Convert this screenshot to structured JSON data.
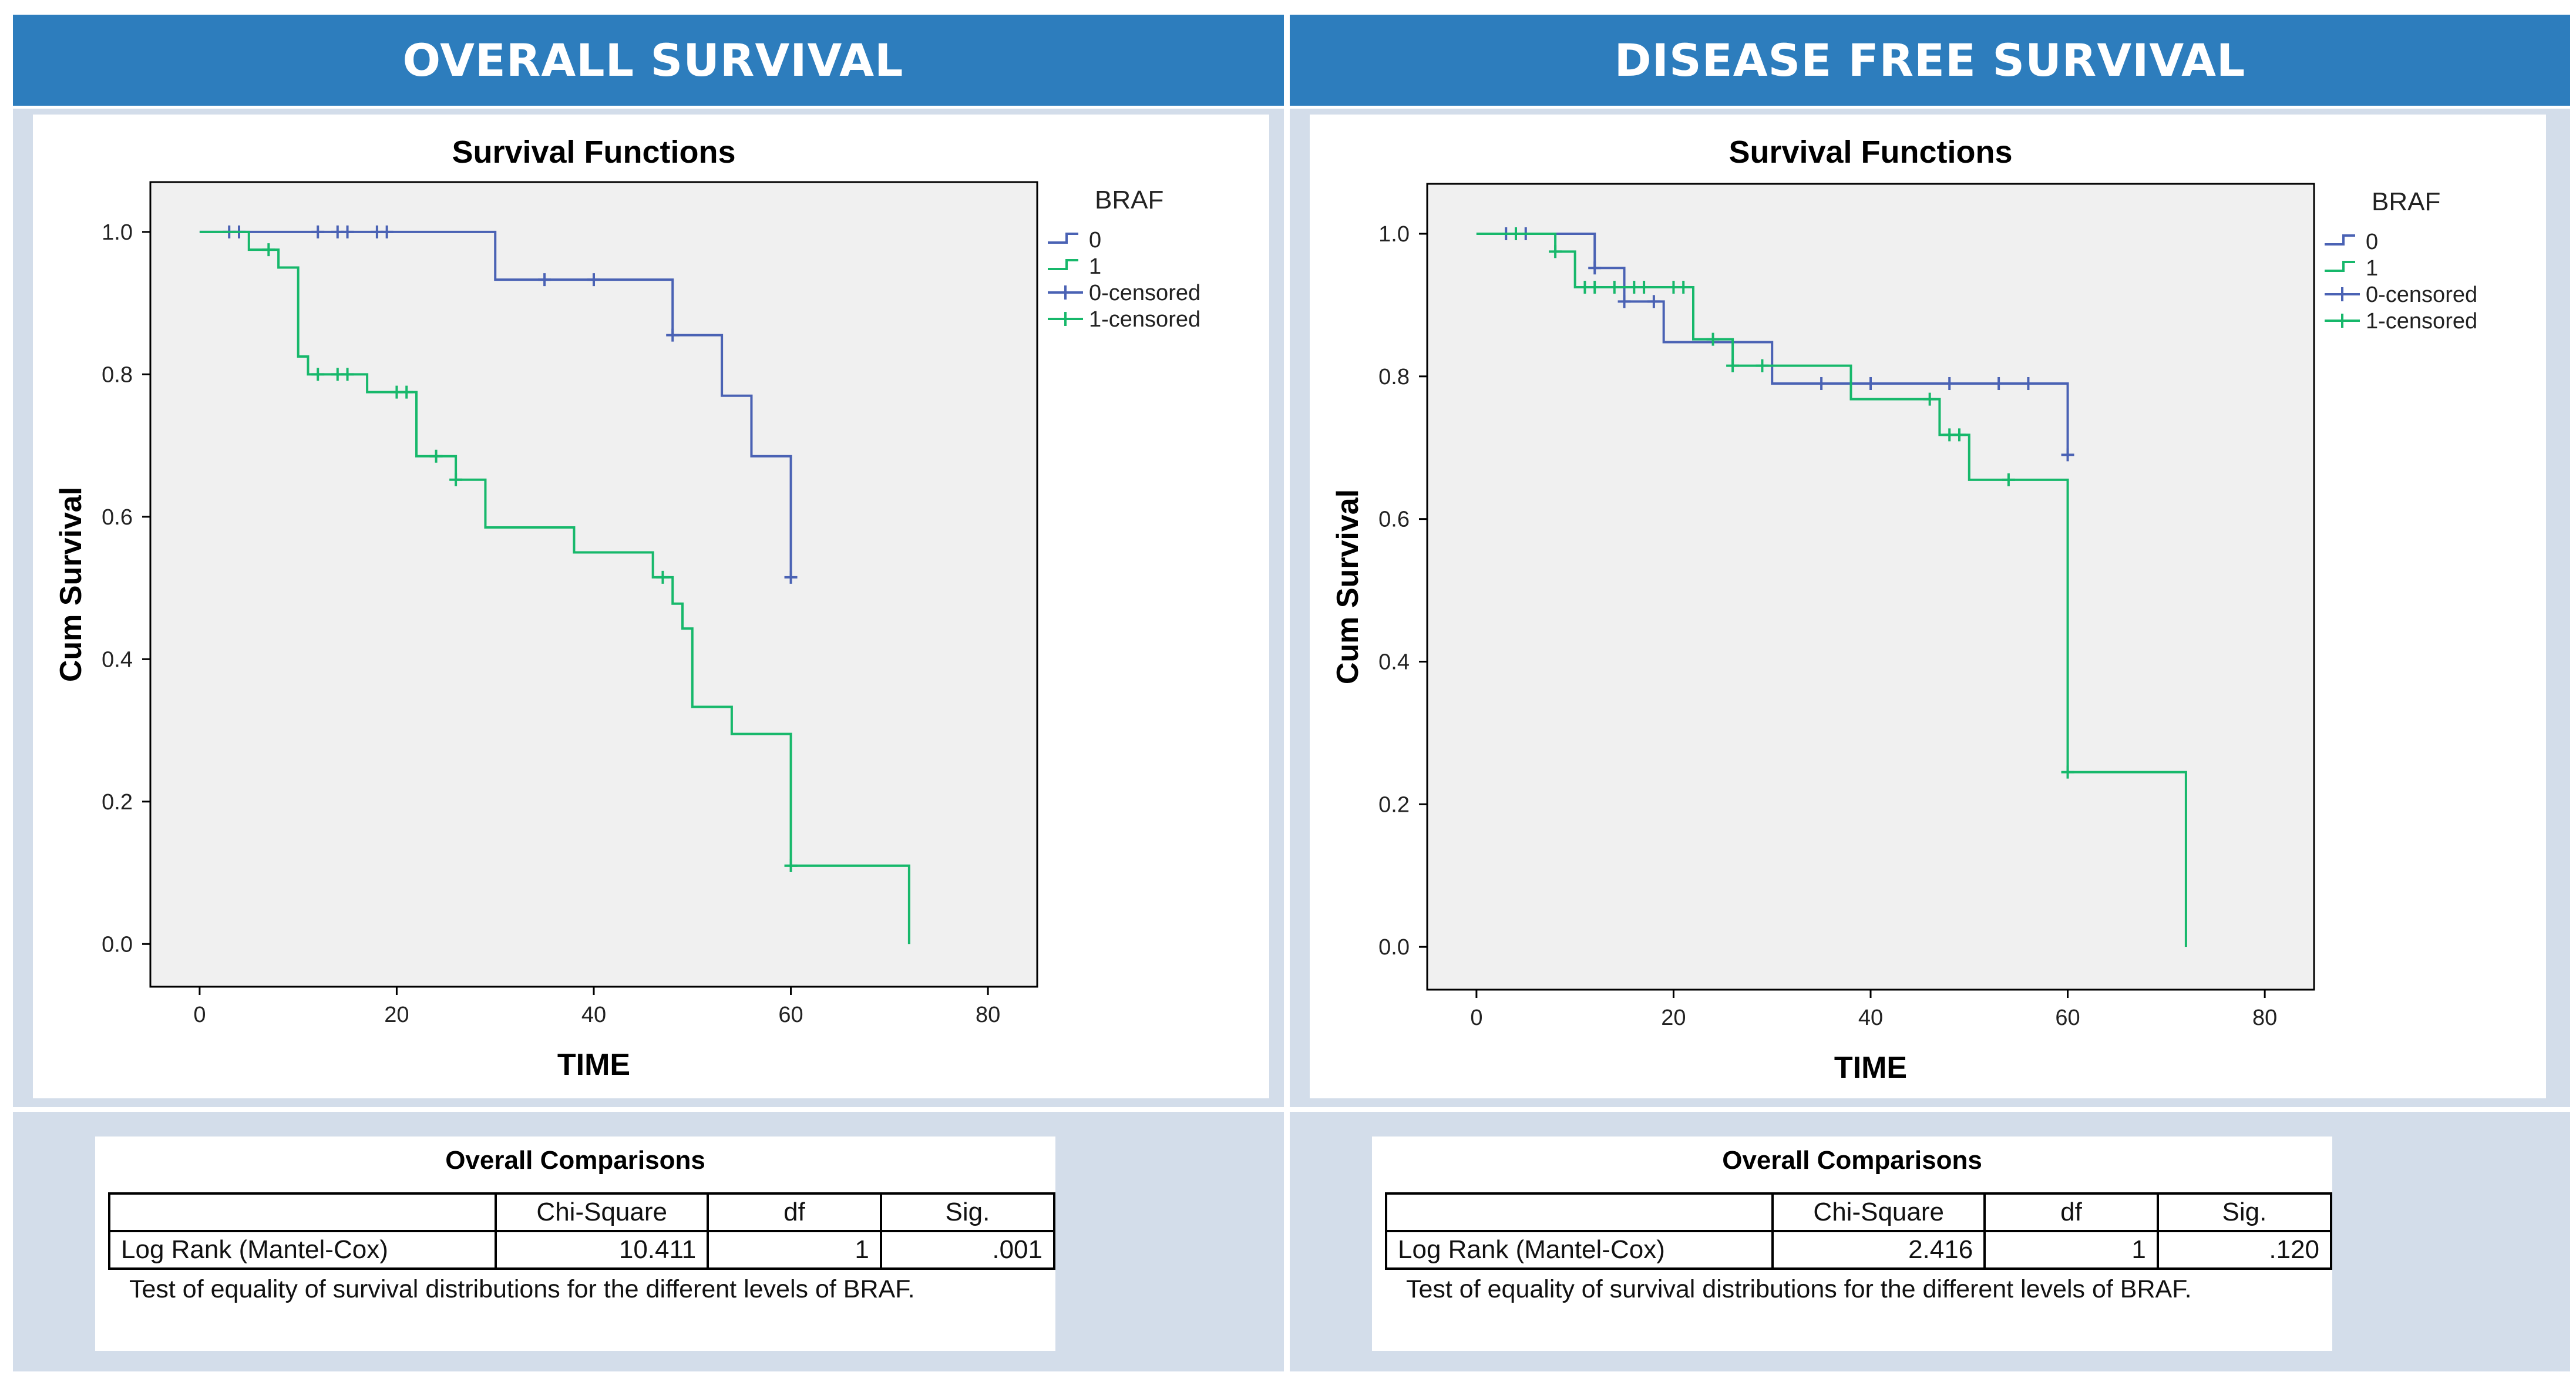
{
  "panels": [
    {
      "id": "overall",
      "header": "OVERALL SURVIVAL",
      "table_title": "Overall Comparisons",
      "table_columns": [
        "",
        "Chi-Square",
        "df",
        "Sig."
      ],
      "table_row": {
        "label": "Log Rank (Mantel-Cox)",
        "chi": "10.411",
        "df": "1",
        "sig": ".001"
      },
      "footnote": "Test of equality of survival distributions for the different levels of BRAF."
    },
    {
      "id": "dfs",
      "header": "DISEASE FREE SURVIVAL",
      "table_title": "Overall Comparisons",
      "table_columns": [
        "",
        "Chi-Square",
        "df",
        "Sig."
      ],
      "table_row": {
        "label": "Log Rank (Mantel-Cox)",
        "chi": "2.416",
        "df": "1",
        "sig": ".120"
      },
      "footnote": "Test of equality of survival distributions for the different levels of BRAF."
    }
  ],
  "colors": {
    "header": "#2d7dbd",
    "panel_bg": "#d3ddea",
    "plot_bg": "#f0f0f0",
    "series0": "#4a62b4",
    "series1": "#17b86b"
  },
  "chart_data": [
    {
      "type": "line",
      "subtype": "kaplan-meier step",
      "title": "Survival Functions",
      "xlabel": "TIME",
      "ylabel": "Cum Survival",
      "xlim": [
        -5,
        85
      ],
      "ylim": [
        -0.06,
        1.07
      ],
      "xticks": [
        0,
        20,
        40,
        60,
        80
      ],
      "yticks": [
        0.0,
        0.2,
        0.4,
        0.6,
        0.8,
        1.0
      ],
      "ytick_labels": [
        "0.0",
        "0.2",
        "0.4",
        "0.6",
        "0.8",
        "1.0"
      ],
      "legend": {
        "title": "BRAF",
        "entries": [
          "0",
          "1",
          "0-censored",
          "1-censored"
        ],
        "position": "right"
      },
      "series": [
        {
          "name": "0",
          "steps": [
            [
              0,
              1.0
            ],
            [
              30,
              0.933
            ],
            [
              48,
              0.855
            ],
            [
              53,
              0.77
            ],
            [
              56,
              0.685
            ],
            [
              60,
              0.515
            ]
          ],
          "end_x": 60,
          "censored": [
            [
              3,
              1.0
            ],
            [
              4,
              1.0
            ],
            [
              12,
              1.0
            ],
            [
              14,
              1.0
            ],
            [
              15,
              1.0
            ],
            [
              18,
              1.0
            ],
            [
              19,
              1.0
            ],
            [
              35,
              0.933
            ],
            [
              40,
              0.933
            ],
            [
              48,
              0.855
            ],
            [
              60,
              0.515
            ]
          ]
        },
        {
          "name": "1",
          "steps": [
            [
              0,
              1.0
            ],
            [
              5,
              0.975
            ],
            [
              8,
              0.95
            ],
            [
              10,
              0.825
            ],
            [
              11,
              0.8
            ],
            [
              17,
              0.775
            ],
            [
              22,
              0.685
            ],
            [
              26,
              0.652
            ],
            [
              29,
              0.585
            ],
            [
              38,
              0.55
            ],
            [
              46,
              0.515
            ],
            [
              48,
              0.478
            ],
            [
              49,
              0.443
            ],
            [
              50,
              0.333
            ],
            [
              54,
              0.295
            ],
            [
              60,
              0.11
            ],
            [
              72,
              0.0
            ]
          ],
          "end_x": 72,
          "censored": [
            [
              7,
              0.975
            ],
            [
              12,
              0.8
            ],
            [
              14,
              0.8
            ],
            [
              15,
              0.8
            ],
            [
              20,
              0.775
            ],
            [
              21,
              0.775
            ],
            [
              24,
              0.685
            ],
            [
              26,
              0.652
            ],
            [
              47,
              0.515
            ],
            [
              60,
              0.11
            ]
          ]
        }
      ]
    },
    {
      "type": "line",
      "subtype": "kaplan-meier step",
      "title": "Survival Functions",
      "xlabel": "TIME",
      "ylabel": "Cum Survival",
      "xlim": [
        -5,
        85
      ],
      "ylim": [
        -0.06,
        1.07
      ],
      "xticks": [
        0,
        20,
        40,
        60,
        80
      ],
      "yticks": [
        0.0,
        0.2,
        0.4,
        0.6,
        0.8,
        1.0
      ],
      "ytick_labels": [
        "0.0",
        "0.2",
        "0.4",
        "0.6",
        "0.8",
        "1.0"
      ],
      "legend": {
        "title": "BRAF",
        "entries": [
          "0",
          "1",
          "0-censored",
          "1-censored"
        ],
        "position": "right"
      },
      "series": [
        {
          "name": "0",
          "steps": [
            [
              0,
              1.0
            ],
            [
              12,
              0.952
            ],
            [
              15,
              0.905
            ],
            [
              19,
              0.848
            ],
            [
              30,
              0.79
            ],
            [
              60,
              0.69
            ]
          ],
          "end_x": 60,
          "censored": [
            [
              3,
              1.0
            ],
            [
              5,
              1.0
            ],
            [
              12,
              0.952
            ],
            [
              15,
              0.905
            ],
            [
              18,
              0.905
            ],
            [
              35,
              0.79
            ],
            [
              40,
              0.79
            ],
            [
              48,
              0.79
            ],
            [
              53,
              0.79
            ],
            [
              56,
              0.79
            ],
            [
              60,
              0.69
            ]
          ]
        },
        {
          "name": "1",
          "steps": [
            [
              0,
              1.0
            ],
            [
              8,
              0.975
            ],
            [
              10,
              0.925
            ],
            [
              22,
              0.852
            ],
            [
              26,
              0.815
            ],
            [
              38,
              0.768
            ],
            [
              47,
              0.718
            ],
            [
              50,
              0.655
            ],
            [
              60,
              0.245
            ],
            [
              72,
              0.0
            ]
          ],
          "end_x": 72,
          "censored": [
            [
              4,
              1.0
            ],
            [
              8,
              0.975
            ],
            [
              11,
              0.925
            ],
            [
              12,
              0.925
            ],
            [
              14,
              0.925
            ],
            [
              16,
              0.925
            ],
            [
              17,
              0.925
            ],
            [
              20,
              0.925
            ],
            [
              21,
              0.925
            ],
            [
              24,
              0.852
            ],
            [
              26,
              0.815
            ],
            [
              29,
              0.815
            ],
            [
              46,
              0.768
            ],
            [
              48,
              0.718
            ],
            [
              49,
              0.718
            ],
            [
              54,
              0.655
            ],
            [
              60,
              0.245
            ]
          ]
        }
      ]
    }
  ]
}
